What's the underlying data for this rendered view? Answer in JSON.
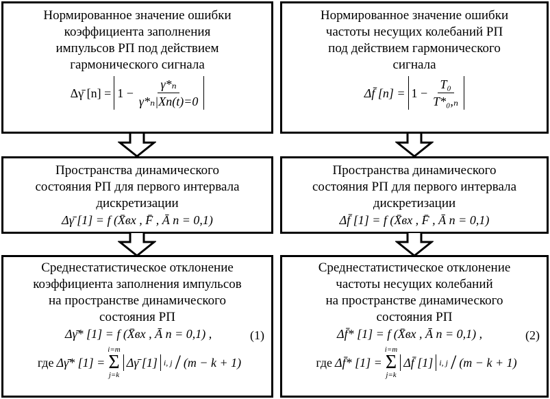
{
  "left": {
    "box1": {
      "lines": [
        "Нормированное значение ошибки",
        "коэффициента заполнения",
        "импульсов РП под действием",
        "гармонического сигнала"
      ],
      "formula": {
        "lhs": "Δγ̄ [n] =",
        "one_minus": "1 −",
        "num": "γ*ₙ",
        "den": "γ*ₙ|Xп(t)=0"
      }
    },
    "box2": {
      "lines": [
        "Пространства динамического",
        "состояния РП для первого интервала",
        "дискретизации"
      ],
      "formula": "Δγ̄ [1] = f (X̄вх , F̄ , Ā п = 0,1)"
    },
    "box3": {
      "lines": [
        "Среднестатистическое отклонение",
        "коэффициента заполнения импульсов",
        "на пространстве динамического",
        "состояния РП"
      ],
      "formula": "Δγ̄* [1] = f (X̄вх , Ā п = 0,1) ,",
      "eq_number": "(1)",
      "where": "где",
      "where_lhs": "Δγ̄* [1] =",
      "sum_top": "i=m",
      "sum_bottom": "j=k",
      "sum_body": "Δγ̄ [1]",
      "sum_index": "i, j",
      "divisor": "(m − k + 1)"
    }
  },
  "right": {
    "box1": {
      "lines": [
        "Нормированное значение ошибки",
        "частоты несущих колебаний РП",
        "под действием гармонического",
        "сигнала"
      ],
      "formula": {
        "lhs": "Δf̄ [n] =",
        "one_minus": "1 −",
        "num": "T₀",
        "den": "T*₀,ₙ"
      }
    },
    "box2": {
      "lines": [
        "Пространства динамического",
        "состояния РП для первого интервала",
        "дискретизации"
      ],
      "formula": "Δf̄ [1] = f (X̄вх , F̄ , Ā п = 0,1)"
    },
    "box3": {
      "lines": [
        "Среднестатистическое отклонение",
        "частоты несущих колебаний",
        "на пространстве динамического",
        "состояния РП"
      ],
      "formula": "Δf̄* [1] = f (X̄вх , Ā п = 0,1) ,",
      "eq_number": "(2)",
      "where": "где",
      "where_lhs": "Δf̄* [1] =",
      "sum_top": "i=m",
      "sum_bottom": "j=k",
      "sum_body": "Δf̄ [1]",
      "sum_index": "i, j",
      "divisor": "(m − k + 1)"
    }
  },
  "icons": {
    "arrow": "hollow-down-arrow"
  }
}
